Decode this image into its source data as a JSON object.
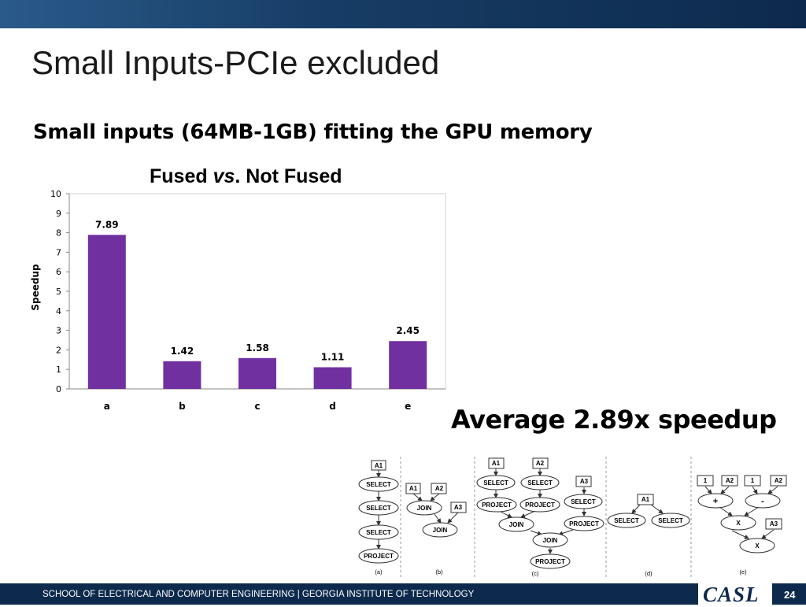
{
  "slide": {
    "title": "Small Inputs-PCIe excluded",
    "subtitle": "Small inputs (64MB-1GB) fitting the GPU memory",
    "average_text": "Average 2.89x speedup",
    "footer": "SCHOOL OF ELECTRICAL AND COMPUTER ENGINEERING | GEORGIA INSTITUTE OF TECHNOLOGY",
    "logo": "CASL",
    "page_number": "24"
  },
  "chart_title": {
    "part1": "Fused ",
    "part2": "vs",
    "part3": ". Not Fused"
  },
  "chart_data": {
    "type": "bar",
    "title": "Fused vs. Not Fused",
    "categories": [
      "a",
      "b",
      "c",
      "d",
      "e"
    ],
    "values": [
      7.89,
      1.42,
      1.58,
      1.11,
      2.45
    ],
    "data_labels": [
      "7.89",
      "1.42",
      "1.58",
      "1.11",
      "2.45"
    ],
    "xlabel": "",
    "ylabel": "Speedup",
    "ylim": [
      0,
      10
    ],
    "yticks": [
      0,
      1,
      2,
      3,
      4,
      5,
      6,
      7,
      8,
      9,
      10
    ],
    "grid": false,
    "bar_color": "#7030a0"
  },
  "diagram": {
    "labels": [
      "(a)",
      "(b)",
      "(c)",
      "(d)",
      "(e)"
    ],
    "a": {
      "a1": "A1",
      "select1": "SELECT",
      "select2": "SELECT",
      "select3": "SELECT",
      "project": "PROJECT"
    },
    "b": {
      "a1": "A1",
      "a2": "A2",
      "join1": "JOIN",
      "a3": "A3",
      "join2": "JOIN"
    },
    "c": {
      "a1": "A1",
      "a2": "A2",
      "select1": "SELECT",
      "select2": "SELECT",
      "a3": "A3",
      "project1": "PROJECT",
      "project2": "PROJECT",
      "select3": "SELECT",
      "join1": "JOIN",
      "project3": "PROJECT",
      "join2": "JOIN",
      "project4": "PROJECT"
    },
    "d": {
      "a1": "A1",
      "select1": "SELECT",
      "select2": "SELECT"
    },
    "e": {
      "one1": "1",
      "a2_1": "A2",
      "one2": "1",
      "a2_2": "A2",
      "plus": "+",
      "minus": "-",
      "x1": "X",
      "a3": "A3",
      "x2": "X"
    }
  }
}
